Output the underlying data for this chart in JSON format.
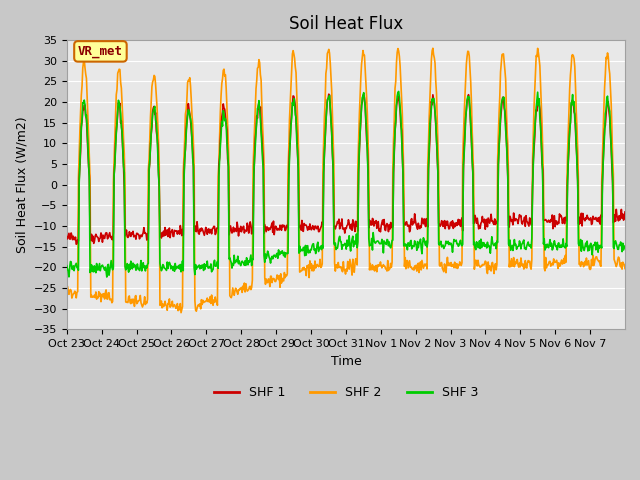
{
  "title": "Soil Heat Flux",
  "ylabel": "Soil Heat Flux (W/m2)",
  "xlabel": "Time",
  "ylim": [
    -35,
    35
  ],
  "yticks": [
    -35,
    -30,
    -25,
    -20,
    -15,
    -10,
    -5,
    0,
    5,
    10,
    15,
    20,
    25,
    30,
    35
  ],
  "xtick_labels": [
    "Oct 23",
    "Oct 24",
    "Oct 25",
    "Oct 26",
    "Oct 27",
    "Oct 28",
    "Oct 29",
    "Oct 30",
    "Oct 31",
    "Nov 1",
    "Nov 2",
    "Nov 3",
    "Nov 4",
    "Nov 5",
    "Nov 6",
    "Nov 7"
  ],
  "colors": {
    "SHF 1": "#CC0000",
    "SHF 2": "#FF9900",
    "SHF 3": "#00CC00"
  },
  "legend_label": "VR_met",
  "bg_color": "#E8E8E8",
  "grid_color": "#FFFFFF",
  "line_width": 1.2,
  "annotation_bg": "#FFFF99",
  "annotation_border": "#CC6600",
  "n_days": 16,
  "pts_per_day": 48
}
